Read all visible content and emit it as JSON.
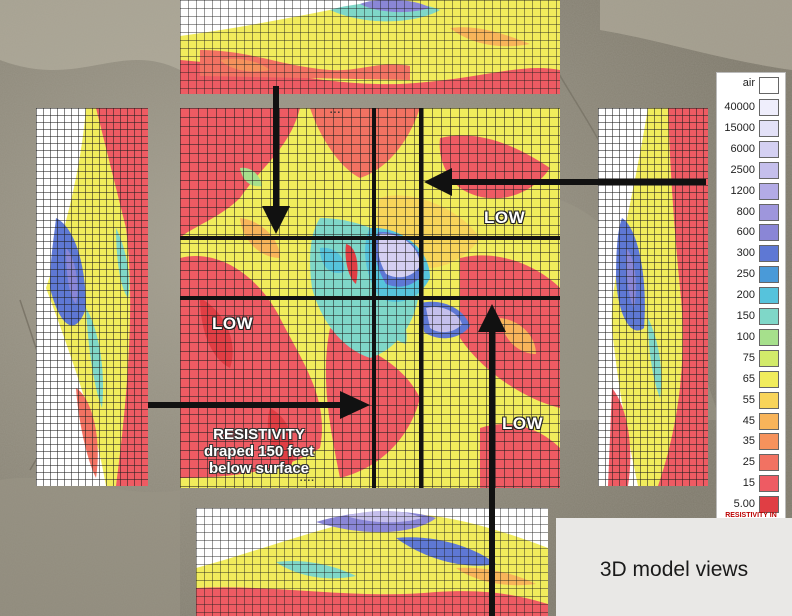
{
  "labels": {
    "low_top": "LOW",
    "low_left": "LOW",
    "low_right": "LOW",
    "caption_line1": "RESISTIVITY",
    "caption_line2": "draped 150 feet",
    "caption_line3": "below surface",
    "views_box": "3D model views"
  },
  "legend": {
    "header": "air",
    "unit": "RESISTIVITY IN",
    "entries": [
      {
        "value": "40000",
        "color": "#efeefc"
      },
      {
        "value": "15000",
        "color": "#e3e1f7"
      },
      {
        "value": "6000",
        "color": "#d4d0f2"
      },
      {
        "value": "2500",
        "color": "#c5bfec"
      },
      {
        "value": "1200",
        "color": "#b3abe6"
      },
      {
        "value": "800",
        "color": "#9e96dc"
      },
      {
        "value": "600",
        "color": "#8a86d6"
      },
      {
        "value": "300",
        "color": "#5e78d4"
      },
      {
        "value": "250",
        "color": "#4a9ad8"
      },
      {
        "value": "200",
        "color": "#56c3dc"
      },
      {
        "value": "150",
        "color": "#7fd7c8"
      },
      {
        "value": "100",
        "color": "#a6e08c"
      },
      {
        "value": "75",
        "color": "#d2ea6a"
      },
      {
        "value": "65",
        "color": "#f1ec5c"
      },
      {
        "value": "55",
        "color": "#f8d45a"
      },
      {
        "value": "45",
        "color": "#f8b45a"
      },
      {
        "value": "35",
        "color": "#f6925c"
      },
      {
        "value": "25",
        "color": "#f27262"
      },
      {
        "value": "15",
        "color": "#ee5b63"
      },
      {
        "value": "5.00",
        "color": "#e03e44"
      }
    ]
  },
  "colors": {
    "low": "#ee5b63",
    "mid": "#f1ec5c",
    "high": "#5e78d4",
    "very_high": "#d4d0f2",
    "arrow": "#111111"
  }
}
